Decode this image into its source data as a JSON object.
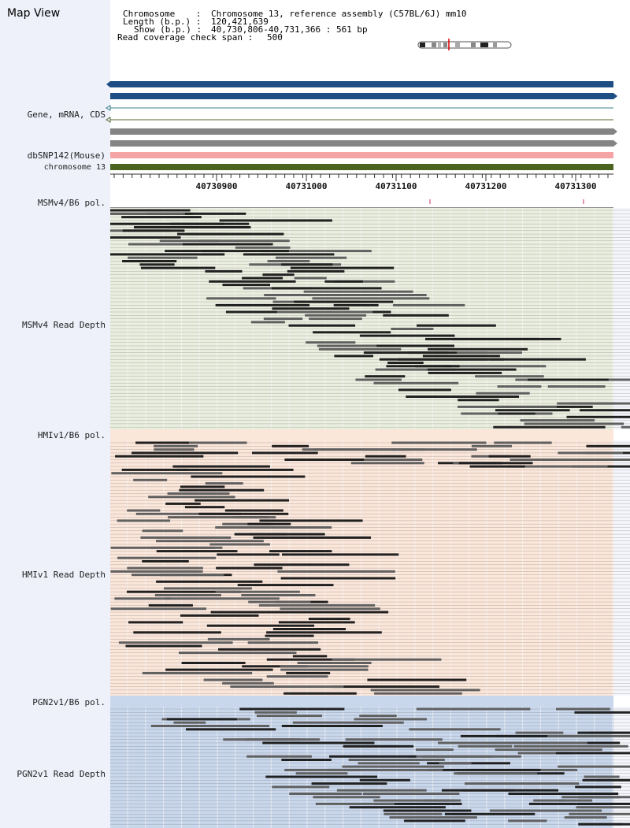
{
  "title": "Map View",
  "info": {
    "chromosome_label": "Chromosome    :",
    "chromosome_value": "Chromosome 13, reference assembly (C57BL/6J) mm10",
    "length_label": "Length (b.p.) :",
    "length_value": "120,421,639",
    "show_label": "Show (b.p.) :",
    "show_value": "40,730,806-40,731,366 : 561 bp",
    "span_label": "Read coverage check span :",
    "span_value": "500"
  },
  "tracks": {
    "gene": "Gene, mRNA, CDS",
    "dbsnp": "dbSNP142(Mouse)",
    "chrom": "chromosome 13",
    "msm_pol": "MSMv4/B6 pol.",
    "msm_depth": "MSMv4 Read Depth",
    "hmi_pol": "HMIv1/B6 pol.",
    "hmi_depth": "HMIv1 Read Depth",
    "pgn_pol": "PGN2v1/B6 pol.",
    "pgn_depth": "PGN2v1 Read Depth"
  },
  "axis": {
    "ticks": [
      "40730900",
      "40731000",
      "40731100",
      "40731200",
      "40731300"
    ]
  },
  "colors": {
    "gene_blue": "#1f4e85",
    "track_gray": "#848484",
    "dbsnp_pink": "#f4a4a4",
    "chrom_green": "#4a6420",
    "msm_bg": "#eaeedf",
    "hmi_bg": "#fbe6da",
    "pgn_bg": "#c9d7ec",
    "read_dark": "#202020",
    "read_mid": "#606060"
  }
}
